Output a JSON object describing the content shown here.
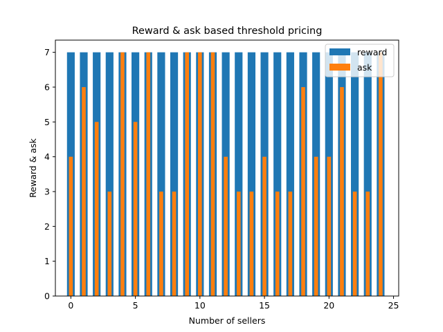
{
  "chart_data": {
    "type": "bar",
    "title": "Reward & ask based threshold pricing",
    "xlabel": "Number of sellers",
    "ylabel": "Reward & ask",
    "xlim": [
      -1.2,
      25.4
    ],
    "ylim": [
      0,
      7.35
    ],
    "x_ticks": [
      0,
      5,
      10,
      15,
      20,
      25
    ],
    "y_ticks": [
      0,
      1,
      2,
      3,
      4,
      5,
      6,
      7
    ],
    "x": [
      0,
      1,
      2,
      3,
      4,
      5,
      6,
      7,
      8,
      9,
      10,
      11,
      12,
      13,
      14,
      15,
      16,
      17,
      18,
      19,
      20,
      21,
      22,
      23,
      24
    ],
    "series": [
      {
        "name": "reward",
        "color": "#1f77b4",
        "bar_width": 0.6,
        "values": [
          7,
          7,
          7,
          7,
          7,
          7,
          7,
          7,
          7,
          7,
          7,
          7,
          7,
          7,
          7,
          7,
          7,
          7,
          7,
          7,
          7,
          7,
          7,
          7,
          7
        ]
      },
      {
        "name": "ask",
        "color": "#ff7f0e",
        "bar_width": 0.3,
        "values": [
          4,
          6,
          5,
          3,
          7,
          5,
          7,
          3,
          3,
          7,
          7,
          7,
          4,
          3,
          3,
          4,
          3,
          3,
          6,
          4,
          4,
          6,
          3,
          3,
          7
        ]
      }
    ],
    "legend": "top-right",
    "grid": false
  }
}
